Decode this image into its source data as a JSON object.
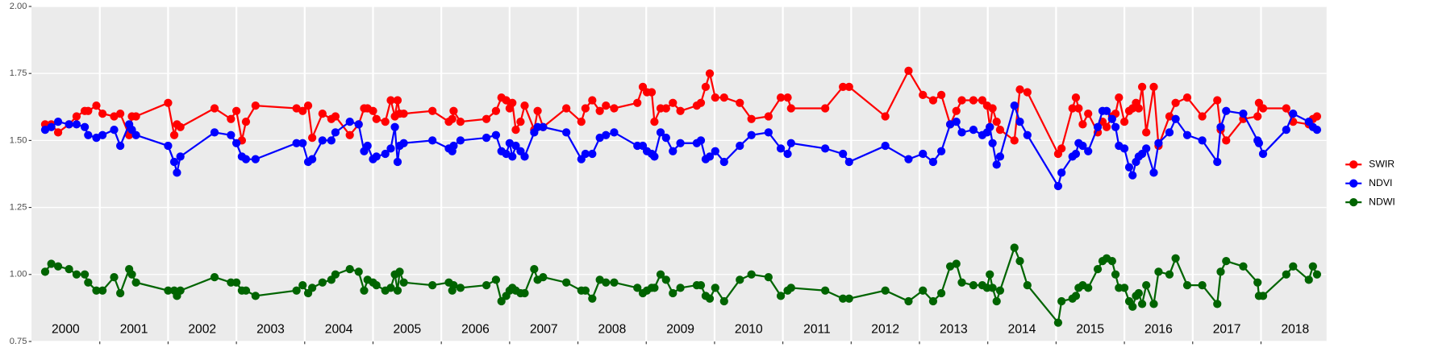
{
  "chart_data": {
    "type": "line",
    "x": [
      2000.2,
      2000.29,
      2000.39,
      2000.55,
      2000.66,
      2000.78,
      2000.83,
      2000.95,
      2001.04,
      2001.21,
      2001.3,
      2001.43,
      2001.47,
      2001.53,
      2002.0,
      2002.09,
      2002.13,
      2002.18,
      2002.68,
      2002.92,
      2003.0,
      2003.08,
      2003.14,
      2003.28,
      2003.88,
      2003.97,
      2004.05,
      2004.11,
      2004.26,
      2004.39,
      2004.45,
      2004.66,
      2004.79,
      2004.87,
      2004.92,
      2005.0,
      2005.05,
      2005.18,
      2005.26,
      2005.32,
      2005.36,
      2005.39,
      2005.45,
      2005.87,
      2006.11,
      2006.16,
      2006.18,
      2006.28,
      2006.66,
      2006.8,
      2006.88,
      2006.95,
      2007.0,
      2007.04,
      2007.09,
      2007.16,
      2007.22,
      2007.36,
      2007.41,
      2007.49,
      2007.83,
      2008.05,
      2008.11,
      2008.21,
      2008.32,
      2008.41,
      2008.53,
      2008.87,
      2008.95,
      2009.01,
      2009.08,
      2009.12,
      2009.21,
      2009.29,
      2009.39,
      2009.5,
      2009.74,
      2009.8,
      2009.87,
      2009.93,
      2010.01,
      2010.14,
      2010.37,
      2010.54,
      2010.79,
      2010.97,
      2011.07,
      2011.12,
      2011.62,
      2011.88,
      2011.97,
      2012.5,
      2012.84,
      2013.05,
      2013.2,
      2013.32,
      2013.45,
      2013.54,
      2013.62,
      2013.79,
      2013.92,
      2013.99,
      2014.03,
      2014.07,
      2014.13,
      2014.18,
      2014.39,
      2014.47,
      2014.58,
      2015.03,
      2015.08,
      2015.24,
      2015.29,
      2015.33,
      2015.39,
      2015.47,
      2015.61,
      2015.68,
      2015.74,
      2015.82,
      2015.87,
      2015.92,
      2016.0,
      2016.07,
      2016.12,
      2016.17,
      2016.21,
      2016.26,
      2016.32,
      2016.43,
      2016.5,
      2016.66,
      2016.75,
      2016.92,
      2017.14,
      2017.36,
      2017.41,
      2017.49,
      2017.74,
      2017.95,
      2017.97,
      2018.03,
      2018.37,
      2018.47,
      2018.7,
      2018.76,
      2018.82
    ],
    "series": [
      {
        "name": "SWIR",
        "color": "#ff0000",
        "values": [
          1.56,
          1.56,
          1.53,
          1.56,
          1.59,
          1.61,
          1.61,
          1.63,
          1.6,
          1.59,
          1.6,
          1.52,
          1.59,
          1.59,
          1.64,
          1.52,
          1.56,
          1.55,
          1.62,
          1.58,
          1.61,
          1.5,
          1.57,
          1.63,
          1.62,
          1.61,
          1.63,
          1.51,
          1.6,
          1.58,
          1.59,
          1.52,
          1.56,
          1.62,
          1.62,
          1.61,
          1.58,
          1.57,
          1.65,
          1.59,
          1.65,
          1.6,
          1.6,
          1.61,
          1.57,
          1.58,
          1.61,
          1.57,
          1.58,
          1.61,
          1.66,
          1.65,
          1.62,
          1.64,
          1.54,
          1.57,
          1.63,
          1.54,
          1.61,
          1.55,
          1.62,
          1.57,
          1.62,
          1.65,
          1.61,
          1.63,
          1.62,
          1.64,
          1.7,
          1.68,
          1.68,
          1.57,
          1.62,
          1.62,
          1.64,
          1.61,
          1.63,
          1.64,
          1.7,
          1.75,
          1.66,
          1.66,
          1.64,
          1.58,
          1.59,
          1.66,
          1.66,
          1.62,
          1.62,
          1.7,
          1.7,
          1.59,
          1.76,
          1.67,
          1.65,
          1.67,
          1.56,
          1.61,
          1.65,
          1.65,
          1.65,
          1.63,
          1.55,
          1.62,
          1.57,
          1.54,
          1.5,
          1.69,
          1.68,
          1.45,
          1.47,
          1.62,
          1.66,
          1.62,
          1.56,
          1.6,
          1.53,
          1.57,
          1.55,
          1.59,
          1.6,
          1.66,
          1.57,
          1.61,
          1.62,
          1.64,
          1.62,
          1.7,
          1.53,
          1.7,
          1.48,
          1.59,
          1.64,
          1.66,
          1.59,
          1.65,
          1.54,
          1.5,
          1.58,
          1.59,
          1.64,
          1.62,
          1.62,
          1.57,
          1.56,
          1.58,
          1.59
        ]
      },
      {
        "name": "NDVI",
        "color": "#0000ff",
        "values": [
          1.54,
          1.55,
          1.57,
          1.56,
          1.56,
          1.55,
          1.52,
          1.51,
          1.52,
          1.54,
          1.48,
          1.56,
          1.54,
          1.52,
          1.48,
          1.42,
          1.38,
          1.44,
          1.53,
          1.52,
          1.49,
          1.44,
          1.43,
          1.43,
          1.49,
          1.49,
          1.42,
          1.43,
          1.5,
          1.5,
          1.53,
          1.57,
          1.56,
          1.46,
          1.48,
          1.43,
          1.44,
          1.45,
          1.47,
          1.55,
          1.42,
          1.48,
          1.49,
          1.5,
          1.47,
          1.46,
          1.48,
          1.5,
          1.51,
          1.52,
          1.46,
          1.45,
          1.49,
          1.44,
          1.48,
          1.46,
          1.44,
          1.53,
          1.55,
          1.55,
          1.53,
          1.43,
          1.45,
          1.45,
          1.51,
          1.52,
          1.53,
          1.48,
          1.48,
          1.46,
          1.45,
          1.44,
          1.53,
          1.51,
          1.46,
          1.49,
          1.49,
          1.5,
          1.43,
          1.44,
          1.46,
          1.42,
          1.48,
          1.52,
          1.53,
          1.47,
          1.45,
          1.49,
          1.47,
          1.45,
          1.42,
          1.48,
          1.43,
          1.45,
          1.42,
          1.46,
          1.56,
          1.57,
          1.53,
          1.54,
          1.52,
          1.53,
          1.55,
          1.49,
          1.41,
          1.44,
          1.63,
          1.57,
          1.52,
          1.33,
          1.38,
          1.44,
          1.45,
          1.49,
          1.48,
          1.46,
          1.55,
          1.61,
          1.61,
          1.58,
          1.55,
          1.48,
          1.47,
          1.4,
          1.37,
          1.42,
          1.44,
          1.45,
          1.47,
          1.38,
          1.49,
          1.53,
          1.58,
          1.52,
          1.5,
          1.42,
          1.55,
          1.61,
          1.6,
          1.5,
          1.49,
          1.45,
          1.54,
          1.6,
          1.57,
          1.55,
          1.54
        ]
      },
      {
        "name": "NDWI",
        "color": "#006400",
        "values": [
          1.01,
          1.04,
          1.03,
          1.02,
          1.0,
          1.0,
          0.97,
          0.94,
          0.94,
          0.99,
          0.93,
          1.02,
          1.0,
          0.97,
          0.94,
          0.94,
          0.92,
          0.94,
          0.99,
          0.97,
          0.97,
          0.94,
          0.94,
          0.92,
          0.94,
          0.96,
          0.93,
          0.95,
          0.97,
          0.98,
          1.0,
          1.02,
          1.01,
          0.94,
          0.98,
          0.97,
          0.96,
          0.94,
          0.95,
          1.0,
          0.94,
          1.01,
          0.97,
          0.96,
          0.97,
          0.94,
          0.96,
          0.95,
          0.96,
          0.98,
          0.9,
          0.92,
          0.94,
          0.95,
          0.94,
          0.93,
          0.93,
          1.02,
          0.98,
          0.99,
          0.97,
          0.94,
          0.94,
          0.91,
          0.98,
          0.97,
          0.97,
          0.95,
          0.93,
          0.94,
          0.95,
          0.95,
          1.0,
          0.98,
          0.93,
          0.95,
          0.96,
          0.96,
          0.92,
          0.91,
          0.95,
          0.9,
          0.98,
          1.0,
          0.99,
          0.92,
          0.94,
          0.95,
          0.94,
          0.91,
          0.91,
          0.94,
          0.9,
          0.94,
          0.9,
          0.93,
          1.03,
          1.04,
          0.97,
          0.96,
          0.96,
          0.95,
          1.0,
          0.95,
          0.9,
          0.94,
          1.1,
          1.05,
          0.96,
          0.82,
          0.9,
          0.91,
          0.92,
          0.95,
          0.96,
          0.95,
          1.02,
          1.05,
          1.06,
          1.05,
          1.0,
          0.95,
          0.95,
          0.9,
          0.88,
          0.92,
          0.93,
          0.89,
          0.96,
          0.89,
          1.01,
          1.0,
          1.06,
          0.96,
          0.96,
          0.89,
          1.01,
          1.05,
          1.03,
          0.97,
          0.92,
          0.92,
          1.0,
          1.03,
          0.98,
          1.03,
          1.0
        ]
      }
    ],
    "xlim": [
      2000,
      2018.96
    ],
    "xticks": [
      2001,
      2002,
      2003,
      2004,
      2005,
      2006,
      2007,
      2008,
      2009,
      2010,
      2011,
      2012,
      2013,
      2014,
      2015,
      2016,
      2017,
      2018
    ],
    "year_labels": [
      {
        "value": 2000,
        "label": "2000"
      },
      {
        "value": 2001,
        "label": "2001"
      },
      {
        "value": 2002,
        "label": "2002"
      },
      {
        "value": 2003,
        "label": "2003"
      },
      {
        "value": 2004,
        "label": "2004"
      },
      {
        "value": 2005,
        "label": "2005"
      },
      {
        "value": 2006,
        "label": "2006"
      },
      {
        "value": 2007,
        "label": "2007"
      },
      {
        "value": 2008,
        "label": "2008"
      },
      {
        "value": 2009,
        "label": "2009"
      },
      {
        "value": 2010,
        "label": "2010"
      },
      {
        "value": 2011,
        "label": "2011"
      },
      {
        "value": 2012,
        "label": "2012"
      },
      {
        "value": 2013,
        "label": "2013"
      },
      {
        "value": 2014,
        "label": "2014"
      },
      {
        "value": 2015,
        "label": "2015"
      },
      {
        "value": 2016,
        "label": "2016"
      },
      {
        "value": 2017,
        "label": "2017"
      },
      {
        "value": 2018,
        "label": "2018"
      }
    ],
    "ylim": [
      0.75,
      2.0
    ],
    "yticks": [
      0.75,
      {
        "value": 1,
        "label": "1.00"
      },
      1.25,
      {
        "value": 1.5,
        "label": "1.50"
      },
      1.75,
      {
        "value": 2,
        "label": "2.00"
      }
    ],
    "grid": true,
    "legend_position": "right"
  }
}
